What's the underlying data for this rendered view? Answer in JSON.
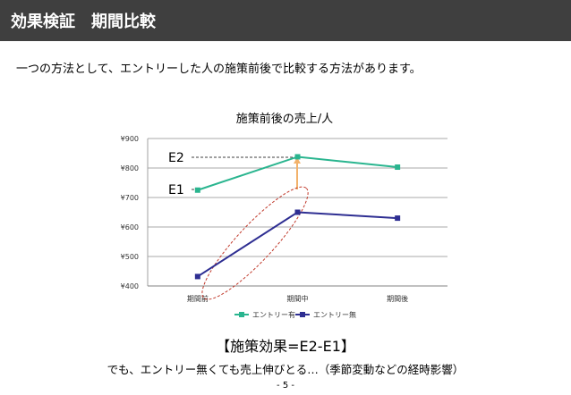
{
  "header": {
    "title": "効果検証　期間比較"
  },
  "intro": {
    "text": "一つの方法として、エントリーした人の施策前後で比較する方法があります。"
  },
  "chart_data": {
    "type": "line",
    "title": "施策前後の売上/人",
    "categories": [
      "期間前",
      "期間中",
      "期間後"
    ],
    "series": [
      {
        "name": "エントリー有",
        "values": [
          725,
          838,
          803
        ],
        "color": "#2ab58f"
      },
      {
        "name": "エントリー無",
        "values": [
          432,
          650,
          630
        ],
        "color": "#2e2e92"
      }
    ],
    "yticks": [
      "¥900",
      "¥800",
      "¥700",
      "¥600",
      "¥500",
      "¥400"
    ],
    "ylim": [
      400,
      900
    ],
    "grid": true,
    "legend": "bottom",
    "annotations": {
      "e2": "E2",
      "e1": "E1"
    }
  },
  "effect": {
    "text": "【施策効果=E2-E1】"
  },
  "note": {
    "text": "でも、エントリー無くても売上伸びとる…（季節変動などの経時影響）"
  },
  "page": {
    "number": "- 5 -"
  }
}
